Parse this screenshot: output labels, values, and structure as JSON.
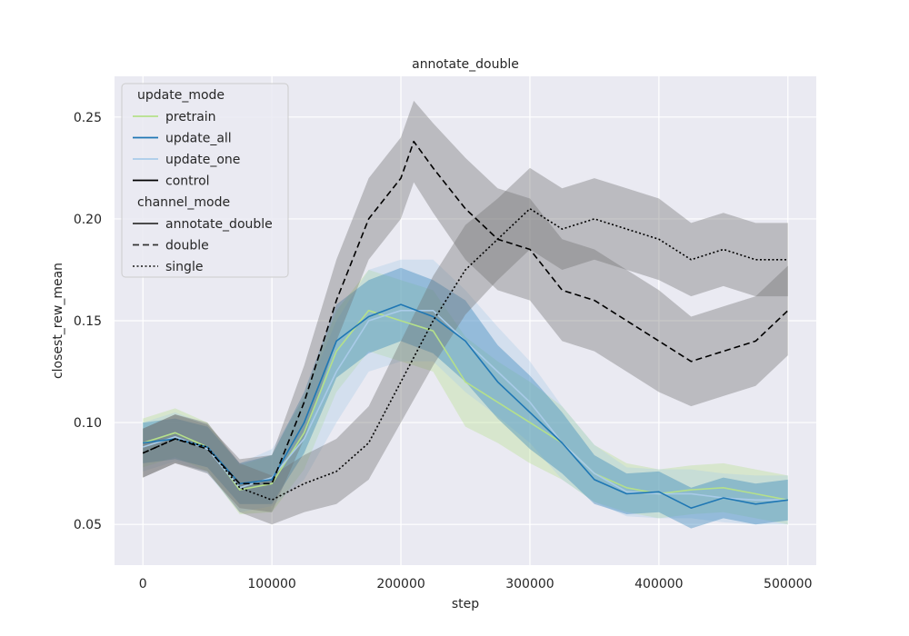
{
  "chart_data": {
    "type": "line",
    "title": "annotate_double",
    "xlabel": "step",
    "ylabel": "closest_rew_mean",
    "xlim": [
      -22000,
      522000
    ],
    "ylim": [
      0.03,
      0.27
    ],
    "x_ticks": [
      0,
      100000,
      200000,
      300000,
      400000,
      500000
    ],
    "x_tick_labels": [
      "0",
      "100000",
      "200000",
      "300000",
      "400000",
      "500000"
    ],
    "y_ticks": [
      0.05,
      0.1,
      0.15,
      0.2,
      0.25
    ],
    "y_tick_labels": [
      "0.05",
      "0.10",
      "0.15",
      "0.20",
      "0.25"
    ],
    "grid": true,
    "legend": {
      "placement": "top-left",
      "sections": [
        {
          "title": "update_mode",
          "entries": [
            {
              "label": "pretrain",
              "color": "#b5e08a",
              "dash": "solid"
            },
            {
              "label": "update_all",
              "color": "#1f77b4",
              "dash": "solid"
            },
            {
              "label": "update_one",
              "color": "#a9cbe8",
              "dash": "solid"
            },
            {
              "label": "control",
              "color": "#000000",
              "dash": "solid"
            }
          ]
        },
        {
          "title": "channel_mode",
          "entries": [
            {
              "label": "annotate_double",
              "color": "#333333",
              "dash": "solid"
            },
            {
              "label": "double",
              "color": "#333333",
              "dash": "dashed"
            },
            {
              "label": "single",
              "color": "#333333",
              "dash": "dotted"
            }
          ]
        }
      ]
    },
    "series": [
      {
        "name": "pretrain",
        "color": "#b5e08a",
        "dash": "solid",
        "x": [
          0,
          25000,
          50000,
          75000,
          100000,
          125000,
          150000,
          175000,
          200000,
          225000,
          250000,
          275000,
          300000,
          325000,
          350000,
          375000,
          400000,
          425000,
          450000,
          475000,
          500000
        ],
        "y": [
          0.09,
          0.095,
          0.088,
          0.067,
          0.07,
          0.095,
          0.135,
          0.155,
          0.15,
          0.145,
          0.12,
          0.11,
          0.1,
          0.09,
          0.075,
          0.068,
          0.065,
          0.067,
          0.068,
          0.065,
          0.062
        ],
        "band": [
          0.012,
          0.012,
          0.012,
          0.012,
          0.014,
          0.018,
          0.02,
          0.02,
          0.02,
          0.02,
          0.022,
          0.02,
          0.02,
          0.018,
          0.014,
          0.012,
          0.012,
          0.012,
          0.012,
          0.012,
          0.012
        ]
      },
      {
        "name": "update_one",
        "color": "#a9cbe8",
        "dash": "solid",
        "x": [
          0,
          25000,
          50000,
          75000,
          100000,
          125000,
          150000,
          175000,
          200000,
          225000,
          250000,
          275000,
          300000,
          325000,
          350000,
          375000,
          400000,
          425000,
          450000,
          475000,
          500000
        ],
        "y": [
          0.088,
          0.093,
          0.087,
          0.068,
          0.073,
          0.092,
          0.125,
          0.15,
          0.155,
          0.155,
          0.14,
          0.125,
          0.11,
          0.09,
          0.075,
          0.066,
          0.065,
          0.065,
          0.063,
          0.062,
          0.062
        ],
        "band": [
          0.012,
          0.012,
          0.012,
          0.012,
          0.014,
          0.02,
          0.025,
          0.025,
          0.025,
          0.025,
          0.025,
          0.022,
          0.02,
          0.018,
          0.014,
          0.012,
          0.012,
          0.012,
          0.012,
          0.012,
          0.012
        ]
      },
      {
        "name": "update_all",
        "color": "#1f77b4",
        "dash": "solid",
        "x": [
          0,
          25000,
          50000,
          75000,
          100000,
          125000,
          150000,
          175000,
          200000,
          225000,
          250000,
          275000,
          300000,
          325000,
          350000,
          375000,
          400000,
          425000,
          450000,
          475000,
          500000
        ],
        "y": [
          0.09,
          0.092,
          0.088,
          0.07,
          0.072,
          0.1,
          0.14,
          0.152,
          0.158,
          0.152,
          0.14,
          0.12,
          0.105,
          0.09,
          0.072,
          0.065,
          0.066,
          0.058,
          0.063,
          0.06,
          0.062
        ],
        "band": [
          0.01,
          0.01,
          0.01,
          0.01,
          0.012,
          0.015,
          0.018,
          0.018,
          0.018,
          0.018,
          0.02,
          0.018,
          0.018,
          0.015,
          0.012,
          0.01,
          0.01,
          0.01,
          0.01,
          0.01,
          0.01
        ]
      },
      {
        "name": "control / single",
        "color": "#000000",
        "dash": "dotted",
        "x": [
          0,
          25000,
          50000,
          75000,
          100000,
          125000,
          150000,
          175000,
          200000,
          225000,
          250000,
          275000,
          300000,
          325000,
          350000,
          375000,
          400000,
          425000,
          450000,
          475000,
          500000
        ],
        "y": [
          0.085,
          0.092,
          0.088,
          0.068,
          0.062,
          0.07,
          0.076,
          0.09,
          0.12,
          0.15,
          0.175,
          0.19,
          0.205,
          0.195,
          0.2,
          0.195,
          0.19,
          0.18,
          0.185,
          0.18,
          0.18
        ],
        "band": [
          0.012,
          0.012,
          0.012,
          0.012,
          0.012,
          0.014,
          0.016,
          0.018,
          0.02,
          0.022,
          0.022,
          0.02,
          0.02,
          0.02,
          0.02,
          0.02,
          0.02,
          0.018,
          0.018,
          0.018,
          0.018
        ]
      },
      {
        "name": "control / double",
        "color": "#000000",
        "dash": "dashed",
        "x": [
          0,
          25000,
          50000,
          75000,
          100000,
          125000,
          150000,
          175000,
          200000,
          210000,
          225000,
          250000,
          275000,
          300000,
          325000,
          350000,
          375000,
          400000,
          425000,
          450000,
          475000,
          500000
        ],
        "y": [
          0.085,
          0.092,
          0.087,
          0.07,
          0.07,
          0.11,
          0.16,
          0.2,
          0.22,
          0.238,
          0.225,
          0.205,
          0.19,
          0.185,
          0.165,
          0.16,
          0.15,
          0.14,
          0.13,
          0.135,
          0.14,
          0.155
        ],
        "band": [
          0.012,
          0.012,
          0.012,
          0.012,
          0.014,
          0.018,
          0.02,
          0.02,
          0.02,
          0.02,
          0.022,
          0.025,
          0.025,
          0.025,
          0.025,
          0.025,
          0.025,
          0.025,
          0.022,
          0.022,
          0.022,
          0.022
        ]
      }
    ]
  }
}
